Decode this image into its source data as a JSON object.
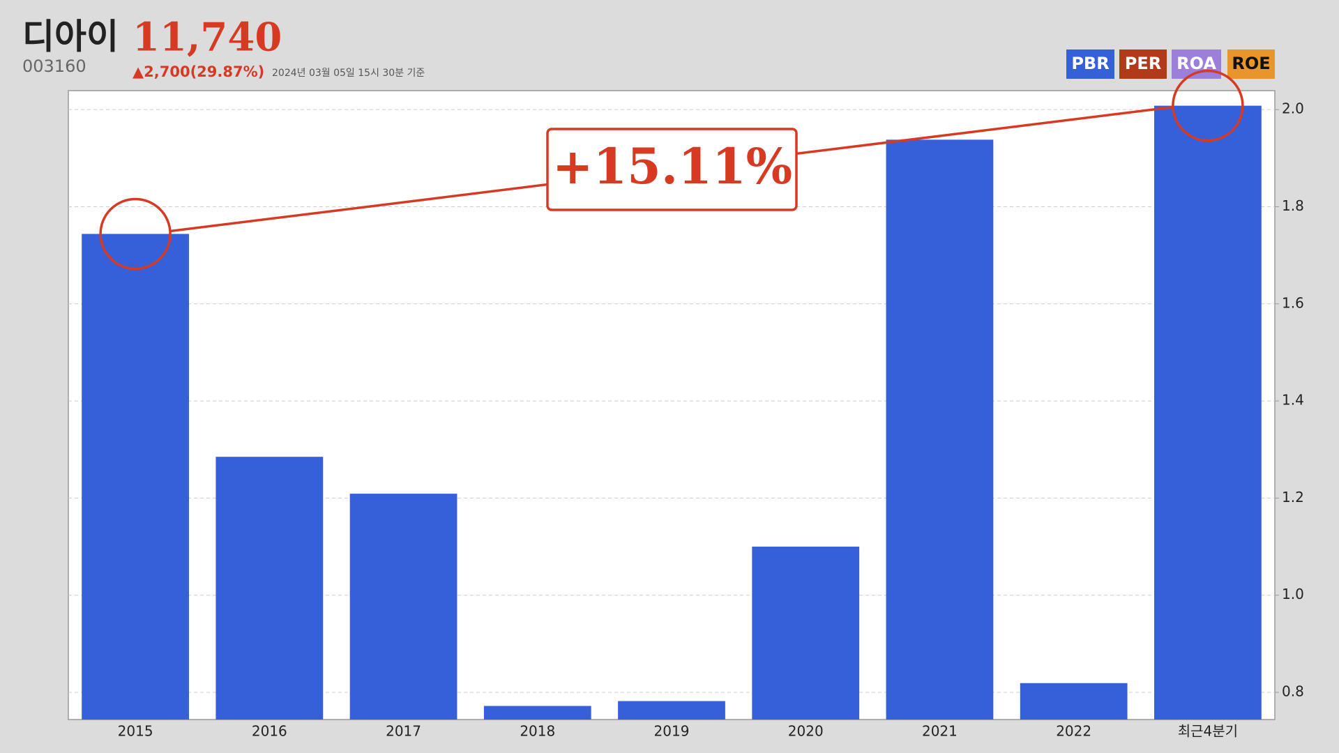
{
  "header": {
    "name": "디아이",
    "price": "11,740",
    "code": "003160",
    "change": "▲2,700(29.87%)",
    "timestamp": "2024년 03월 05일 15시 30분 기준"
  },
  "metric_tabs": [
    {
      "label": "PBR",
      "color": "#3660d8"
    },
    {
      "label": "PER",
      "color": "#b23a1a"
    },
    {
      "label": "ROA",
      "color": "#9b7fd9"
    },
    {
      "label": "ROE",
      "color": "#e8962a"
    }
  ],
  "chart_data": {
    "type": "bar",
    "categories": [
      "2015",
      "2016",
      "2017",
      "2018",
      "2019",
      "2020",
      "2021",
      "2022",
      "최근4분기"
    ],
    "values": [
      1.744,
      1.285,
      1.209,
      0.772,
      0.782,
      1.1,
      1.938,
      0.819,
      2.008
    ],
    "color": "#3660d8",
    "ylim": [
      0.744,
      2.039
    ],
    "yticks": [
      0.8,
      {
        "value": 1,
        "label": "1.0"
      },
      1.2,
      1.4,
      1.6,
      1.8,
      {
        "value": 2,
        "label": "2.0"
      }
    ],
    "grid": true,
    "annotation": "+15.11%"
  }
}
